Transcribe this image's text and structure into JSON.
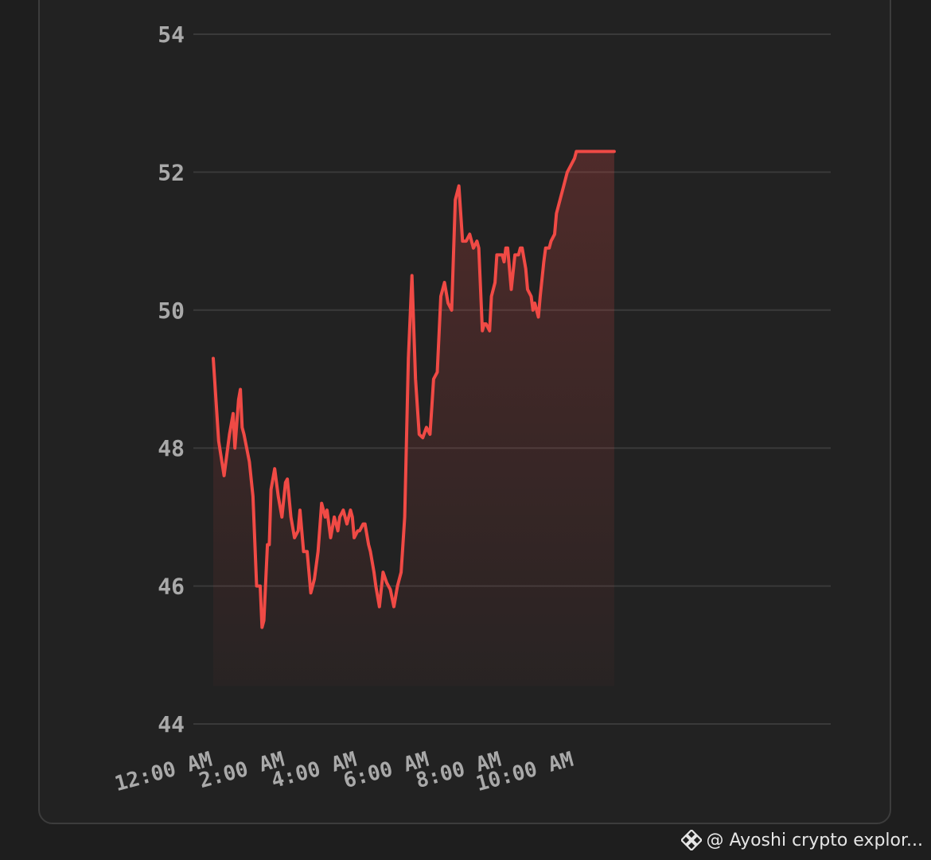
{
  "watermark": {
    "text": "@ Ayoshi crypto explor...",
    "icon": "binance-diamond-icon"
  },
  "colors": {
    "line": "#f04a45",
    "grid": "#3a3a3a",
    "tick_text": "#a9a9a9",
    "background": "#222222"
  },
  "chart_data": {
    "type": "area",
    "title": "",
    "xlabel": "",
    "ylabel": "",
    "ylim": [
      44,
      54
    ],
    "yticks": [
      44,
      46,
      48,
      50,
      52,
      54
    ],
    "xlim": [
      0,
      17
    ],
    "xticks": [
      {
        "x": 0,
        "label": "12:00 AM"
      },
      {
        "x": 2,
        "label": "2:00 AM"
      },
      {
        "x": 4,
        "label": "4:00 AM"
      },
      {
        "x": 6,
        "label": "6:00 AM"
      },
      {
        "x": 8,
        "label": "8:00 AM"
      },
      {
        "x": 10,
        "label": "10:00 AM"
      }
    ],
    "grid": true,
    "legend": "none",
    "series": [
      {
        "values_x_hours": [
          0.0,
          0.15,
          0.3,
          0.45,
          0.55,
          0.6,
          0.7,
          0.75,
          0.8,
          0.85,
          1.0,
          1.1,
          1.2,
          1.3,
          1.35,
          1.4,
          1.5,
          1.55,
          1.6,
          1.7,
          1.8,
          1.9,
          2.0,
          2.05,
          2.15,
          2.25,
          2.35,
          2.4,
          2.5,
          2.6,
          2.7,
          2.8,
          2.9,
          3.0,
          3.1,
          3.15,
          3.25,
          3.35,
          3.45,
          3.5,
          3.55,
          3.6,
          3.7,
          3.8,
          3.85,
          3.9,
          4.0,
          4.05,
          4.15,
          4.2,
          4.3,
          4.35,
          4.45,
          4.5,
          4.6,
          4.7,
          4.8,
          4.9,
          5.0,
          5.1,
          5.2,
          5.3,
          5.4,
          5.5,
          5.6,
          5.7,
          5.8,
          5.9,
          6.0,
          6.05,
          6.1,
          6.2,
          6.3,
          6.4,
          6.5,
          6.6,
          6.7,
          6.8,
          6.9,
          7.0,
          7.1,
          7.2,
          7.3,
          7.35,
          7.45,
          7.5,
          7.55,
          7.65,
          7.7,
          7.8,
          7.85,
          7.9,
          8.0,
          8.05,
          8.1,
          8.15,
          8.25,
          8.35,
          8.45,
          8.5,
          8.55,
          8.65,
          8.7,
          8.8,
          8.85,
          8.9,
          9.0,
          9.05,
          9.15,
          9.2,
          9.3,
          9.35,
          9.45,
          9.5,
          9.6,
          9.7,
          9.8,
          9.9,
          10.0,
          10.05,
          10.15,
          10.25,
          10.3,
          10.4,
          10.5,
          10.6,
          10.7,
          10.75,
          10.85,
          10.95,
          11.0,
          11.1
        ],
        "values": [
          49.3,
          48.1,
          47.6,
          48.2,
          48.5,
          48.0,
          48.7,
          48.85,
          48.3,
          48.2,
          47.8,
          47.3,
          46.0,
          46.0,
          45.4,
          45.5,
          46.6,
          46.6,
          47.4,
          47.7,
          47.3,
          47.0,
          47.5,
          47.55,
          47.0,
          46.7,
          46.8,
          47.1,
          46.5,
          46.5,
          45.9,
          46.1,
          46.5,
          47.2,
          47.0,
          47.1,
          46.7,
          47.0,
          46.8,
          47.0,
          47.05,
          47.1,
          46.9,
          47.1,
          47.0,
          46.7,
          46.8,
          46.8,
          46.9,
          46.9,
          46.6,
          46.5,
          46.2,
          46.0,
          45.7,
          46.2,
          46.05,
          45.95,
          45.7,
          46.0,
          46.2,
          47.0,
          49.3,
          50.5,
          49.0,
          48.2,
          48.15,
          48.3,
          48.2,
          48.6,
          49.0,
          49.1,
          50.2,
          50.4,
          50.1,
          50.0,
          51.6,
          51.8,
          51.0,
          51.0,
          51.1,
          50.9,
          51.0,
          50.9,
          49.7,
          49.8,
          49.8,
          49.7,
          50.2,
          50.4,
          50.8,
          50.8,
          50.8,
          50.7,
          50.9,
          50.9,
          50.3,
          50.8,
          50.8,
          50.9,
          50.9,
          50.6,
          50.3,
          50.2,
          50.0,
          50.1,
          49.9,
          50.2,
          50.7,
          50.9,
          50.9,
          51.0,
          51.1,
          51.4,
          51.6,
          51.8,
          52.0,
          52.1,
          52.2,
          52.3,
          52.3,
          52.3,
          52.3,
          52.3,
          52.3,
          52.3,
          52.3,
          52.3,
          52.3,
          52.3,
          52.3,
          52.3
        ]
      }
    ]
  }
}
